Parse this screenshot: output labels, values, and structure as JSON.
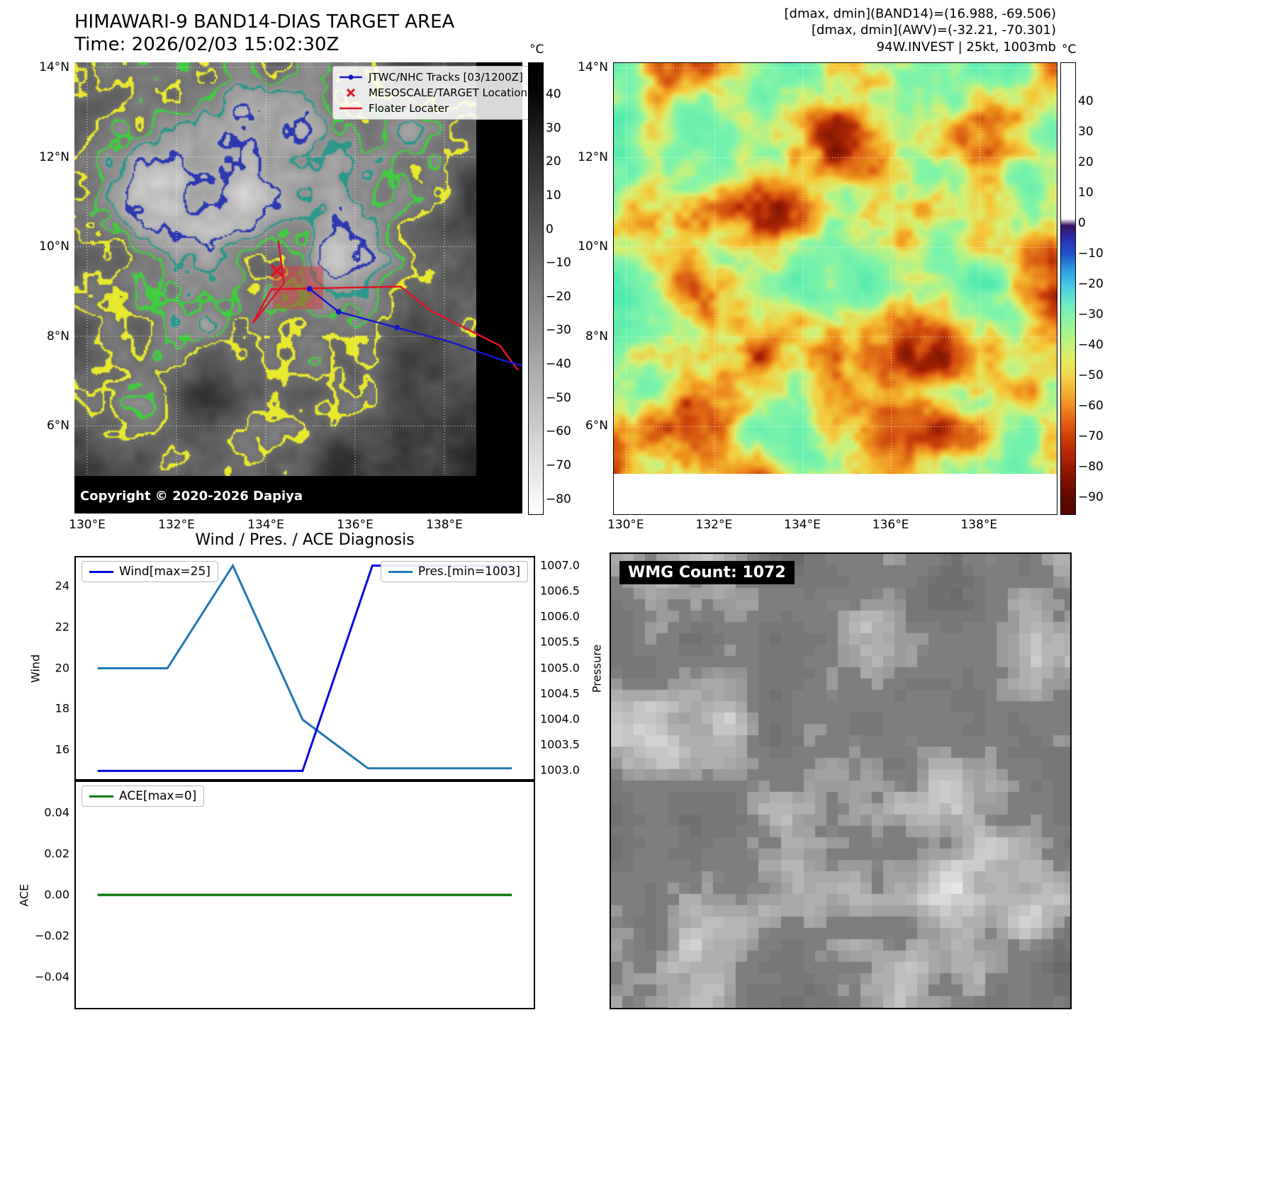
{
  "band14": {
    "title": "HIMAWARI-9 BAND14-DIAS TARGET AREA",
    "time": "Time: 2026/02/03 15:02:30Z",
    "copyright": "Copyright © 2020-2026 Dapiya",
    "legend_items": [
      {
        "label": "JTWC/NHC Tracks [03/1200Z]",
        "marker": "blue-line-dot"
      },
      {
        "label": "MESOSCALE/TARGET Location",
        "marker": "red-x"
      },
      {
        "label": "Floater Locater",
        "marker": "red-line"
      }
    ],
    "x_ticks": [
      "130°E",
      "132°E",
      "134°E",
      "136°E",
      "138°E"
    ],
    "y_ticks": [
      "14°N",
      "12°N",
      "10°N",
      "8°N",
      "6°N"
    ],
    "colorbar": {
      "unit": "°C",
      "ticks": [
        "40",
        "30",
        "20",
        "10",
        "0",
        "−10",
        "−20",
        "−30",
        "−40",
        "−50",
        "−60",
        "−70",
        "−80"
      ]
    },
    "tracks": {
      "floater": [
        [
          0.455,
          0.395
        ],
        [
          0.468,
          0.49
        ],
        [
          0.398,
          0.578
        ],
        [
          0.44,
          0.503
        ],
        [
          0.728,
          0.497
        ],
        [
          0.795,
          0.55
        ],
        [
          0.95,
          0.628
        ],
        [
          0.99,
          0.682
        ]
      ],
      "jtwc": [
        [
          0.525,
          0.502
        ],
        [
          0.59,
          0.553
        ],
        [
          0.72,
          0.588
        ],
        [
          0.84,
          0.62
        ],
        [
          0.955,
          0.66
        ],
        [
          1.0,
          0.672
        ]
      ],
      "target": [
        0.452,
        0.462
      ],
      "target_box": [
        0.443,
        0.452,
        0.112,
        0.095
      ]
    }
  },
  "awv": {
    "header_lines": [
      "[dmax, dmin](BAND14)=(16.988, -69.506)",
      "[dmax, dmin](AWV)=(-32.21, -70.301)",
      "94W.INVEST | 25kt, 1003mb"
    ],
    "x_ticks": [
      "130°E",
      "132°E",
      "134°E",
      "136°E",
      "138°E"
    ],
    "y_ticks": [
      "14°N",
      "12°N",
      "10°N",
      "8°N",
      "6°N"
    ],
    "colorbar": {
      "unit": "°C",
      "ticks": [
        "40",
        "30",
        "20",
        "10",
        "0",
        "−10",
        "−20",
        "−30",
        "−40",
        "−50",
        "−60",
        "−70",
        "−80",
        "−90"
      ]
    }
  },
  "diagnosis": {
    "title": "Wind / Pres. / ACE Diagnosis",
    "legend_wind": "Wind[max=25]",
    "legend_pres": "Pres.[min=1003]",
    "legend_ace": "ACE[max=0]",
    "ylabel_wind": "Wind",
    "ylabel_pressure": "Pressure",
    "ylabel_ace": "ACE",
    "wind_ticks": [
      "24",
      "22",
      "20",
      "18",
      "16"
    ],
    "pressure_ticks": [
      "1007.0",
      "1006.5",
      "1006.0",
      "1005.5",
      "1005.0",
      "1004.5",
      "1004.0",
      "1003.5",
      "1003.0"
    ],
    "ace_ticks": [
      "0.04",
      "0.02",
      "0.00",
      "−0.02",
      "−0.04"
    ]
  },
  "wmg": {
    "label": "WMG Count: 1072"
  },
  "chart_data": [
    {
      "type": "line",
      "title": "Wind / Pres. / ACE Diagnosis",
      "subplot": "wind_pressure",
      "x_lim": [
        -0.5,
        10
      ],
      "series": [
        {
          "name": "Pres.[min=1003]",
          "axis": "right",
          "color": "#1f77b4",
          "points": [
            [
              0,
              1005
            ],
            [
              1.6,
              1005
            ],
            [
              3.1,
              1007
            ],
            [
              4.7,
              1004
            ],
            [
              6.2,
              1003.05
            ],
            [
              9.5,
              1003.05
            ]
          ]
        },
        {
          "name": "Wind[max=25]",
          "axis": "left",
          "color": "#0808dc",
          "points": [
            [
              0,
              15
            ],
            [
              4.7,
              15
            ],
            [
              6.3,
              25
            ],
            [
              9.5,
              25
            ]
          ]
        }
      ],
      "y_left": {
        "label": "Wind",
        "lim": [
          14.6,
          25.4
        ],
        "ticks": [
          24,
          22,
          20,
          18,
          16
        ]
      },
      "y_right": {
        "label": "Pressure",
        "lim": [
          1002.84,
          1007.16
        ],
        "ticks": [
          1007,
          1006.5,
          1006,
          1005.5,
          1005,
          1004.5,
          1004,
          1003.5,
          1003
        ]
      }
    },
    {
      "type": "line",
      "subplot": "ace",
      "x_lim": [
        -0.5,
        10
      ],
      "series": [
        {
          "name": "ACE[max=0]",
          "axis": "left",
          "color": "#0f7d0f",
          "points": [
            [
              0,
              0
            ],
            [
              9.5,
              0
            ]
          ]
        }
      ],
      "y_left": {
        "label": "ACE",
        "lim": [
          -0.055,
          0.055
        ],
        "ticks": [
          0.04,
          0.02,
          0,
          -0.02,
          -0.04
        ]
      }
    }
  ]
}
